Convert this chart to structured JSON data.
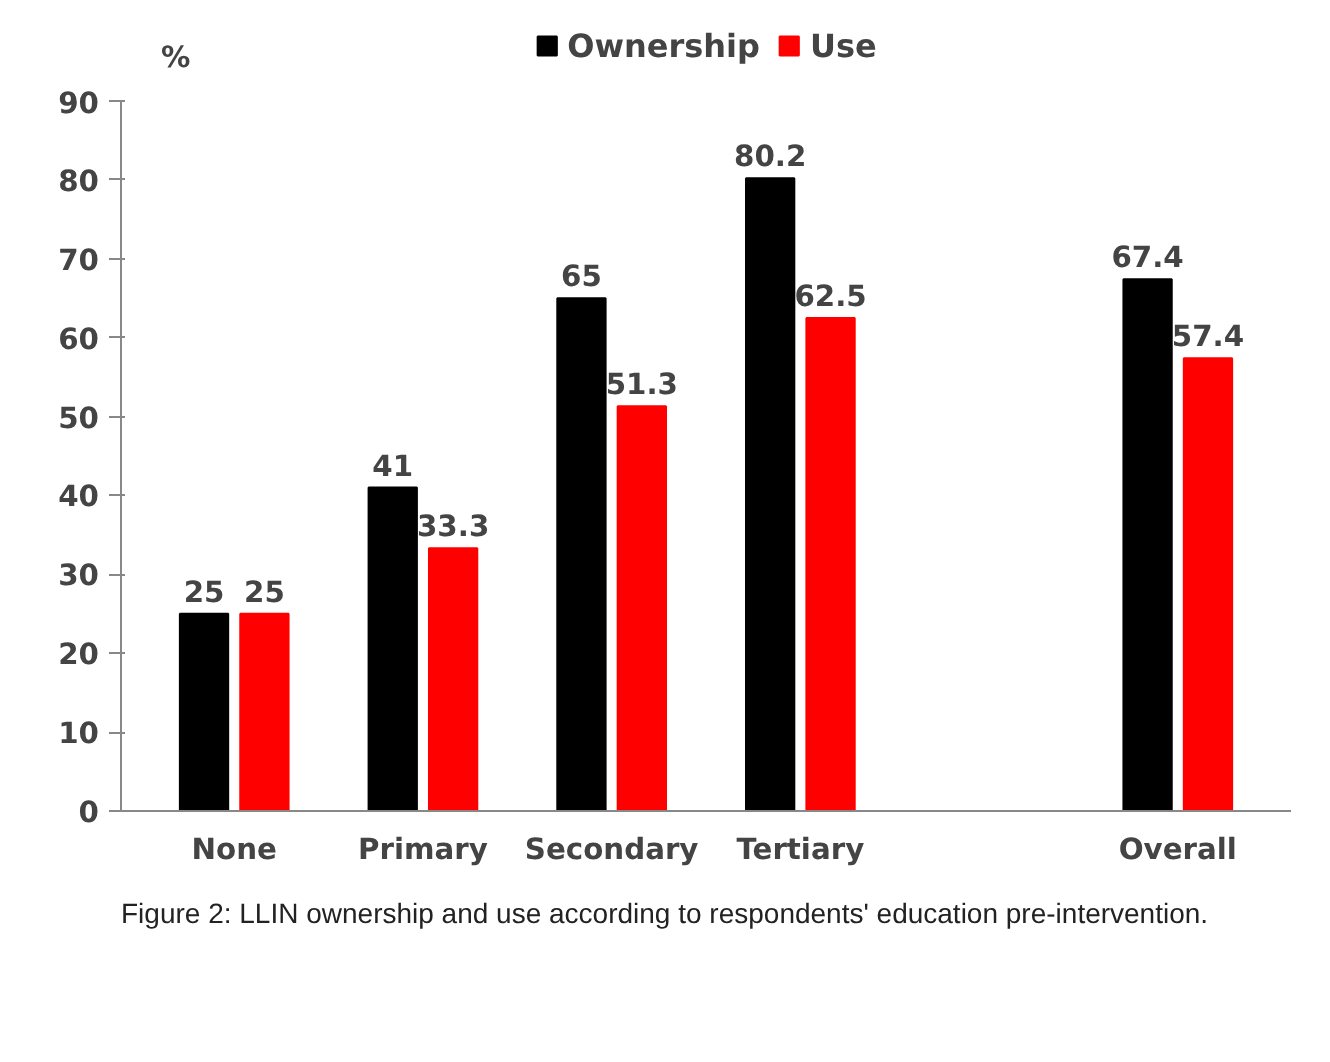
{
  "chart_data": {
    "type": "bar",
    "categories": [
      "None",
      "Primary",
      "Secondary",
      "Tertiary",
      null,
      "Overall"
    ],
    "series": [
      {
        "name": "Ownership",
        "color": "#000000",
        "values": [
          25,
          41,
          65,
          80.2,
          null,
          67.4
        ]
      },
      {
        "name": "Use",
        "color": "#ff0000",
        "values": [
          25,
          33.3,
          51.3,
          62.5,
          null,
          57.4
        ]
      }
    ],
    "ylabel": "%",
    "ylim": [
      0,
      90
    ],
    "yticks": [
      0,
      10,
      20,
      30,
      40,
      50,
      60,
      70,
      80,
      90
    ],
    "grid": false,
    "legend": "top",
    "data_labels": true,
    "annotations": [
      "Figure 2: LLIN ownership and use according to respondents' education pre-intervention."
    ]
  }
}
